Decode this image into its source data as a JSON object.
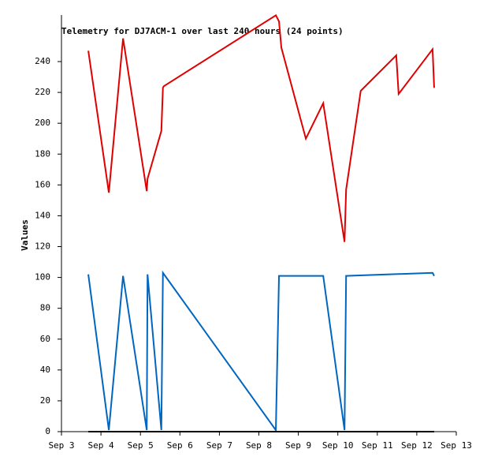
{
  "chart_data": {
    "type": "line",
    "title": "Telemetry for DJ7ACM-1 over last 240 hours (24 points)",
    "y_label": "Values",
    "xlim": [
      3,
      13
    ],
    "xticks": [
      {
        "value": 3,
        "label": "Sep 3"
      },
      {
        "value": 4,
        "label": "Sep 4"
      },
      {
        "value": 5,
        "label": "Sep 5"
      },
      {
        "value": 6,
        "label": "Sep 6"
      },
      {
        "value": 7,
        "label": "Sep 7"
      },
      {
        "value": 8,
        "label": "Sep 8"
      },
      {
        "value": 9,
        "label": "Sep 9"
      },
      {
        "value": 10,
        "label": "Sep 10"
      },
      {
        "value": 11,
        "label": "Sep 11"
      },
      {
        "value": 12,
        "label": "Sep 12"
      },
      {
        "value": 13,
        "label": "Sep 13"
      }
    ],
    "ylim": [
      0,
      270
    ],
    "yticks": [
      0,
      20,
      40,
      60,
      80,
      100,
      120,
      140,
      160,
      180,
      200,
      220,
      240
    ],
    "series": [
      {
        "color": "#e00000",
        "x": [
          3.68,
          4.2,
          4.56,
          5.16,
          5.18,
          5.53,
          5.57,
          5.59,
          8.43,
          8.51,
          8.57,
          9.19,
          9.63,
          10.17,
          10.21,
          10.58,
          11.48,
          11.54,
          12.4,
          12.44
        ],
        "values": [
          247,
          155,
          255,
          156,
          164,
          195,
          223,
          224,
          270,
          266,
          249,
          190,
          213,
          123,
          157,
          221,
          244,
          219,
          248,
          223
        ]
      },
      {
        "color": "#0066c0",
        "x": [
          3.68,
          4.2,
          4.56,
          5.16,
          5.18,
          5.53,
          5.57,
          8.43,
          8.51,
          9.63,
          10.17,
          10.21,
          12.4,
          12.44
        ],
        "values": [
          102,
          1,
          101,
          1,
          102,
          1,
          103,
          1,
          101,
          101,
          1,
          101,
          103,
          101
        ]
      },
      {
        "color": "#000000",
        "x": [
          3.68,
          12.44
        ],
        "values": [
          0,
          0
        ]
      }
    ]
  }
}
